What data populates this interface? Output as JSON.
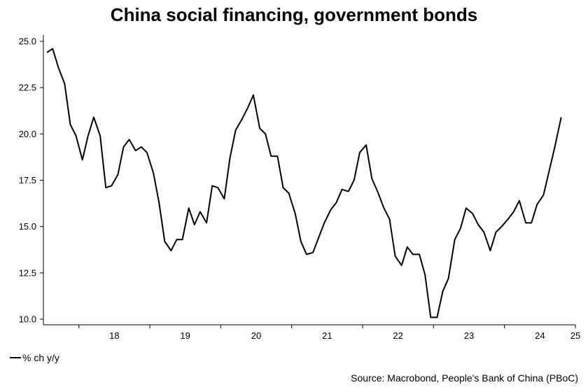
{
  "chart_data": {
    "type": "line",
    "title": "China social financing, government bonds",
    "xlabel": "",
    "ylabel": "",
    "y_ticks": [
      "10.0",
      "12.5",
      "15.0",
      "17.5",
      "20.0",
      "22.5",
      "25.0"
    ],
    "ylim": [
      10,
      25
    ],
    "x_ticks": [
      "18",
      "19",
      "20",
      "21",
      "22",
      "23",
      "24",
      "25"
    ],
    "x_range": [
      2017.5,
      2025.0
    ],
    "grid": false,
    "legend_position": "bottom-left",
    "series": [
      {
        "name": "% ch y/y",
        "color": "#000000",
        "x": [
          2017.55,
          2017.63,
          2017.71,
          2017.8,
          2017.88,
          2017.96,
          2018.05,
          2018.13,
          2018.21,
          2018.3,
          2018.38,
          2018.46,
          2018.55,
          2018.63,
          2018.71,
          2018.8,
          2018.88,
          2018.96,
          2019.05,
          2019.13,
          2019.21,
          2019.3,
          2019.38,
          2019.46,
          2019.55,
          2019.63,
          2019.71,
          2019.8,
          2019.88,
          2019.96,
          2020.05,
          2020.13,
          2020.21,
          2020.3,
          2020.38,
          2020.46,
          2020.55,
          2020.63,
          2020.71,
          2020.8,
          2020.88,
          2020.96,
          2021.05,
          2021.13,
          2021.21,
          2021.3,
          2021.38,
          2021.46,
          2021.55,
          2021.63,
          2021.71,
          2021.8,
          2021.88,
          2021.96,
          2022.05,
          2022.13,
          2022.21,
          2022.3,
          2022.38,
          2022.46,
          2022.55,
          2022.63,
          2022.71,
          2022.8,
          2022.88,
          2022.96,
          2023.05,
          2023.13,
          2023.21,
          2023.3,
          2023.38,
          2023.46,
          2023.55,
          2023.63,
          2023.71,
          2023.8,
          2023.88,
          2023.96,
          2024.05,
          2024.13,
          2024.21,
          2024.3,
          2024.38,
          2024.46,
          2024.55,
          2024.63,
          2024.71,
          2024.8
        ],
        "y": [
          24.4,
          24.6,
          23.6,
          22.7,
          20.5,
          19.9,
          18.6,
          19.9,
          20.9,
          19.9,
          17.1,
          17.2,
          17.8,
          19.3,
          19.7,
          19.1,
          19.3,
          19.0,
          17.9,
          16.3,
          14.2,
          13.7,
          14.3,
          14.3,
          16.0,
          15.1,
          15.8,
          15.2,
          17.2,
          17.1,
          16.5,
          18.7,
          20.2,
          20.8,
          21.4,
          22.1,
          20.3,
          20.0,
          18.8,
          18.8,
          17.1,
          16.8,
          15.7,
          14.2,
          13.5,
          13.6,
          14.4,
          15.2,
          15.9,
          16.3,
          17.0,
          16.9,
          17.5,
          19.0,
          19.4,
          17.6,
          16.9,
          16.0,
          15.4,
          13.4,
          12.9,
          13.9,
          13.5,
          13.5,
          12.4,
          10.1,
          10.1,
          11.5,
          12.2,
          14.3,
          14.9,
          16.0,
          15.7,
          15.1,
          14.7,
          13.7,
          14.7,
          15.0,
          15.4,
          15.8,
          16.4,
          15.2,
          15.2,
          16.2,
          16.7,
          18.0,
          19.3,
          20.9
        ]
      }
    ],
    "source": "Source: Macrobond, People's Bank of China (PBoC)"
  }
}
